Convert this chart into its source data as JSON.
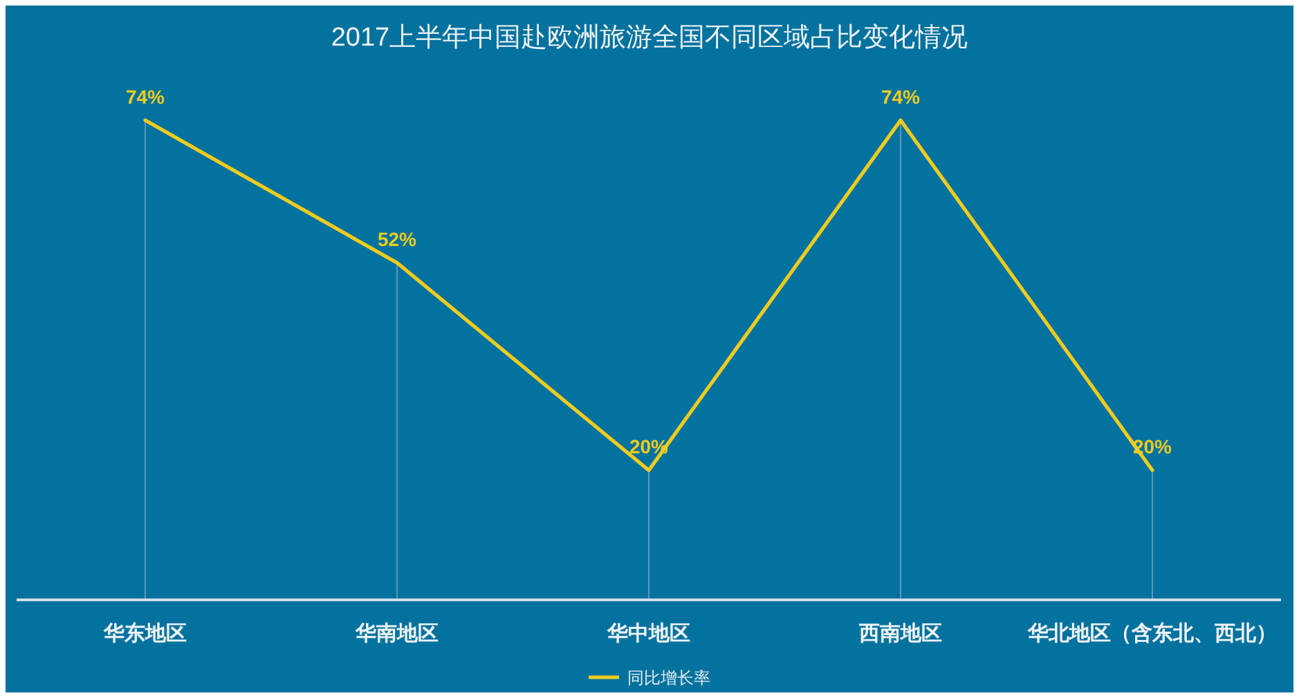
{
  "chart_data": {
    "type": "line",
    "title": "2017上半年中国赴欧洲旅游全国不同区域占比变化情况",
    "categories": [
      "华东地区",
      "华南地区",
      "华中地区",
      "西南地区",
      "华北地区（含东北、西北）"
    ],
    "series": [
      {
        "name": "同比增长率",
        "color": "#f0cc1e",
        "values": [
          74,
          52,
          20,
          74,
          20
        ],
        "value_labels": [
          "74%",
          "52%",
          "20%",
          "74%",
          "20%"
        ]
      }
    ],
    "grid": "x",
    "legend": "bottom",
    "tick_labels": "x"
  }
}
